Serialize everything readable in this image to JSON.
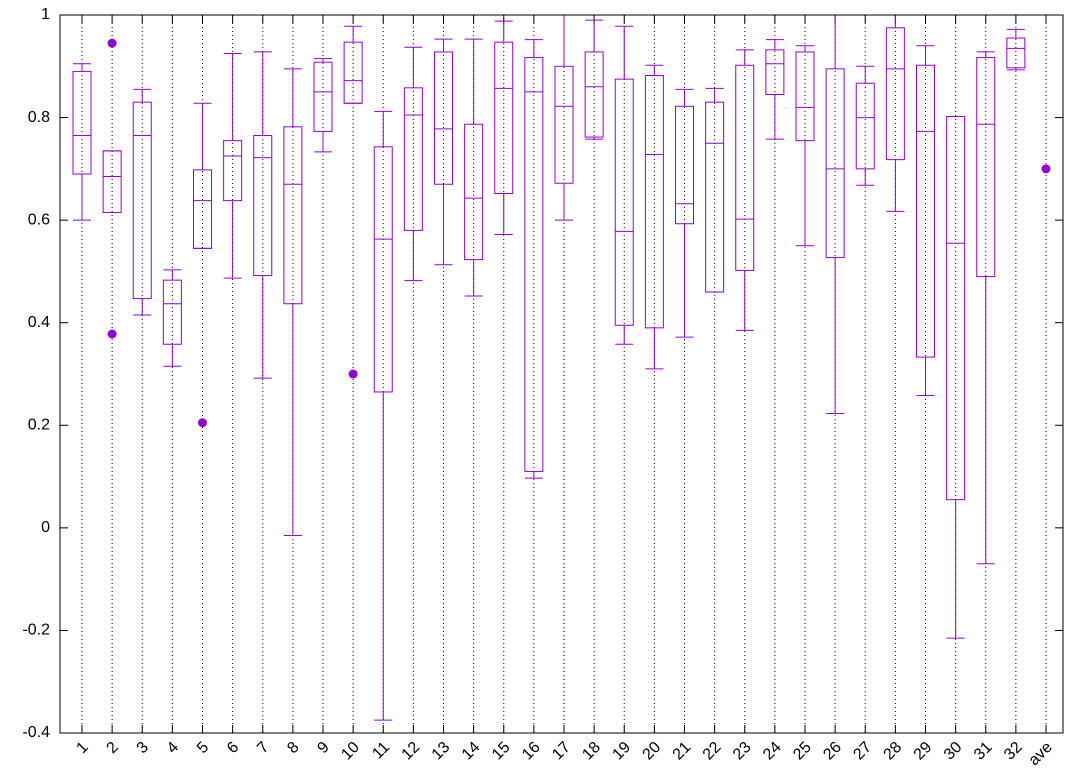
{
  "chart_data": {
    "type": "box",
    "color": "#9400d3",
    "xgrid": true,
    "categories": [
      "1",
      "2",
      "3",
      "4",
      "5",
      "6",
      "7",
      "8",
      "9",
      "10",
      "11",
      "12",
      "13",
      "14",
      "15",
      "16",
      "17",
      "18",
      "19",
      "20",
      "21",
      "22",
      "23",
      "24",
      "25",
      "26",
      "27",
      "28",
      "29",
      "30",
      "31",
      "32",
      "ave"
    ],
    "boxes": [
      {
        "min": 0.6,
        "q1": 0.69,
        "median": 0.765,
        "q3": 0.89,
        "max": 0.905
      },
      {
        "min": 0.615,
        "q1": 0.615,
        "median": 0.685,
        "q3": 0.735,
        "max": 0.735,
        "points": [
          0.945,
          0.378
        ]
      },
      {
        "min": 0.415,
        "q1": 0.447,
        "median": 0.765,
        "q3": 0.83,
        "max": 0.855
      },
      {
        "min": 0.315,
        "q1": 0.358,
        "median": 0.437,
        "q3": 0.483,
        "max": 0.503
      },
      {
        "min": 0.545,
        "q1": 0.545,
        "median": 0.638,
        "q3": 0.698,
        "max": 0.828,
        "points": [
          0.205
        ]
      },
      {
        "min": 0.487,
        "q1": 0.638,
        "median": 0.725,
        "q3": 0.755,
        "max": 0.925
      },
      {
        "min": 0.292,
        "q1": 0.492,
        "median": 0.722,
        "q3": 0.765,
        "max": 0.928
      },
      {
        "min": -0.015,
        "q1": 0.437,
        "median": 0.67,
        "q3": 0.782,
        "max": 0.895
      },
      {
        "min": 0.733,
        "q1": 0.773,
        "median": 0.85,
        "q3": 0.908,
        "max": 0.915
      },
      {
        "min": 0.828,
        "q1": 0.828,
        "median": 0.872,
        "q3": 0.947,
        "max": 0.978,
        "points": [
          0.3
        ]
      },
      {
        "min": -0.375,
        "q1": 0.265,
        "median": 0.563,
        "q3": 0.743,
        "max": 0.812
      },
      {
        "min": 0.482,
        "q1": 0.58,
        "median": 0.805,
        "q3": 0.858,
        "max": 0.937
      },
      {
        "min": 0.513,
        "q1": 0.67,
        "median": 0.778,
        "q3": 0.928,
        "max": 0.953
      },
      {
        "min": 0.452,
        "q1": 0.523,
        "median": 0.643,
        "q3": 0.787,
        "max": 0.953
      },
      {
        "min": 0.572,
        "q1": 0.652,
        "median": 0.857,
        "q3": 0.947,
        "max": 0.988
      },
      {
        "min": 0.097,
        "q1": 0.11,
        "median": 0.85,
        "q3": 0.917,
        "max": 0.952
      },
      {
        "min": 0.6,
        "q1": 0.672,
        "median": 0.822,
        "q3": 0.9,
        "max": 1.0
      },
      {
        "min": 0.758,
        "q1": 0.762,
        "median": 0.86,
        "q3": 0.928,
        "max": 0.99
      },
      {
        "min": 0.358,
        "q1": 0.395,
        "median": 0.578,
        "q3": 0.875,
        "max": 0.978
      },
      {
        "min": 0.31,
        "q1": 0.39,
        "median": 0.728,
        "q3": 0.882,
        "max": 0.902
      },
      {
        "min": 0.372,
        "q1": 0.593,
        "median": 0.632,
        "q3": 0.822,
        "max": 0.855
      },
      {
        "min": 0.46,
        "q1": 0.46,
        "median": 0.75,
        "q3": 0.83,
        "max": 0.857
      },
      {
        "min": 0.385,
        "q1": 0.502,
        "median": 0.602,
        "q3": 0.902,
        "max": 0.932
      },
      {
        "min": 0.758,
        "q1": 0.845,
        "median": 0.905,
        "q3": 0.932,
        "max": 0.952
      },
      {
        "min": 0.55,
        "q1": 0.755,
        "median": 0.82,
        "q3": 0.928,
        "max": 0.94
      },
      {
        "min": 0.223,
        "q1": 0.527,
        "median": 0.7,
        "q3": 0.895,
        "max": 1.0
      },
      {
        "min": 0.668,
        "q1": 0.7,
        "median": 0.8,
        "q3": 0.867,
        "max": 0.9
      },
      {
        "min": 0.617,
        "q1": 0.718,
        "median": 0.895,
        "q3": 0.975,
        "max": 1.0
      },
      {
        "min": 0.258,
        "q1": 0.333,
        "median": 0.773,
        "q3": 0.902,
        "max": 0.94
      },
      {
        "min": -0.215,
        "q1": 0.055,
        "median": 0.555,
        "q3": 0.802,
        "max": 0.802
      },
      {
        "min": -0.07,
        "q1": 0.49,
        "median": 0.787,
        "q3": 0.917,
        "max": 0.928
      },
      {
        "min": 0.893,
        "q1": 0.897,
        "median": 0.935,
        "q3": 0.955,
        "max": 0.972
      },
      {
        "points": [
          0.7
        ]
      }
    ],
    "ylim": [
      -0.4,
      1
    ],
    "yticks": [
      -0.4,
      -0.2,
      0,
      0.2,
      0.4,
      0.6,
      0.8,
      1
    ]
  }
}
